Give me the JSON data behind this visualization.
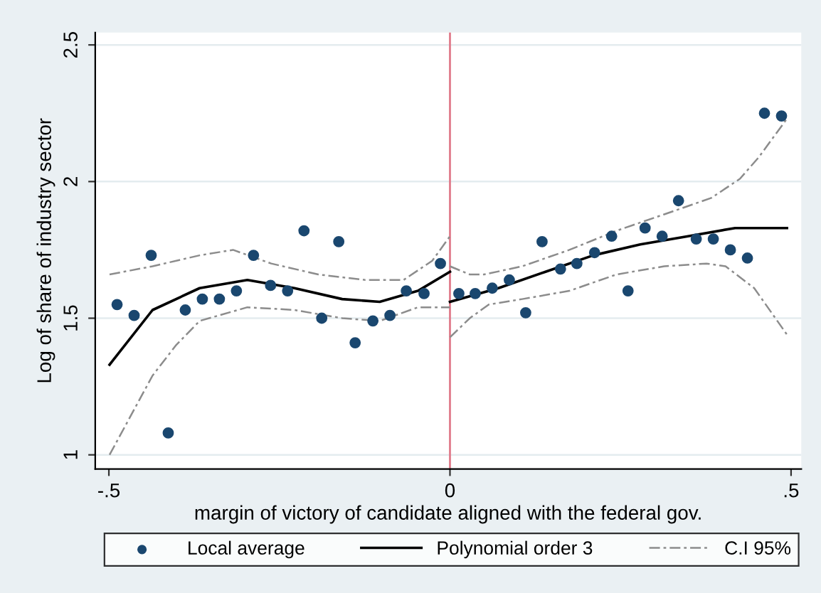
{
  "chart_data": {
    "type": "scatter",
    "xlabel": "margin of victory of candidate aligned with the federal gov.",
    "ylabel": "Log of share of industry sector",
    "xlim": [
      -0.52,
      0.515
    ],
    "ylim": [
      0.948,
      2.545
    ],
    "xticks": [
      {
        "value": -0.5,
        "label": "-.5"
      },
      0,
      {
        "value": 0.5,
        "label": ".5"
      }
    ],
    "yticks": [
      1,
      1.5,
      2,
      2.5
    ],
    "grid": "y",
    "legend": "bottom",
    "ref_lines": [
      {
        "axis": "x",
        "value": 0,
        "color": "#e07a8a"
      }
    ],
    "series": [
      {
        "name": "Local average",
        "marker": "circle",
        "color": "#1a476f",
        "x": [
          -0.488,
          -0.463,
          -0.438,
          -0.413,
          -0.388,
          -0.363,
          -0.338,
          -0.313,
          -0.288,
          -0.263,
          -0.238,
          -0.214,
          -0.188,
          -0.163,
          -0.139,
          -0.113,
          -0.088,
          -0.064,
          -0.038,
          -0.014,
          0.013,
          0.037,
          0.062,
          0.087,
          0.111,
          0.135,
          0.162,
          0.186,
          0.212,
          0.237,
          0.261,
          0.286,
          0.311,
          0.335,
          0.361,
          0.386,
          0.411,
          0.436,
          0.461,
          0.486
        ],
        "values": [
          1.55,
          1.51,
          1.73,
          1.08,
          1.53,
          1.57,
          1.57,
          1.6,
          1.73,
          1.62,
          1.6,
          1.82,
          1.5,
          1.78,
          1.41,
          1.49,
          1.51,
          1.6,
          1.59,
          1.7,
          1.59,
          1.59,
          1.61,
          1.64,
          1.52,
          1.78,
          1.68,
          1.7,
          1.74,
          1.8,
          1.6,
          1.83,
          1.8,
          1.93,
          1.79,
          1.79,
          1.75,
          1.72,
          2.25,
          2.24
        ]
      },
      {
        "name": "Polynomial order 3",
        "type": "line",
        "marker": "none",
        "line_style": "solid",
        "color": "#000000",
        "x": [
          -0.499,
          -0.436,
          -0.367,
          -0.297,
          -0.228,
          -0.158,
          -0.103,
          -0.047,
          0
        ],
        "values": [
          1.33,
          1.53,
          1.61,
          1.64,
          1.61,
          1.57,
          1.56,
          1.6,
          1.67
        ]
      },
      {
        "type": "line",
        "marker": "none",
        "line_style": "solid",
        "color": "#000000",
        "x": [
          0,
          0.071,
          0.14,
          0.21,
          0.279,
          0.349,
          0.418,
          0.494
        ],
        "values": [
          1.56,
          1.61,
          1.67,
          1.73,
          1.77,
          1.8,
          1.83,
          1.83
        ]
      },
      {
        "name": "C.I 95%",
        "type": "line",
        "marker": "none",
        "line_style": "dashed",
        "color": "#8c8c8c",
        "x": [
          -0.499,
          -0.436,
          -0.367,
          -0.318,
          -0.262,
          -0.193,
          -0.124,
          -0.068,
          -0.026,
          0
        ],
        "values": [
          1.66,
          1.69,
          1.73,
          1.75,
          1.7,
          1.66,
          1.64,
          1.64,
          1.71,
          1.8
        ]
      },
      {
        "type": "line",
        "marker": "none",
        "line_style": "dashed",
        "color": "#8c8c8c",
        "x": [
          0,
          0.029,
          0.05,
          0.106,
          0.175,
          0.244,
          0.314,
          0.383,
          0.425,
          0.453,
          0.494
        ],
        "values": [
          1.69,
          1.66,
          1.66,
          1.69,
          1.75,
          1.82,
          1.88,
          1.94,
          2.01,
          2.09,
          2.23
        ]
      },
      {
        "type": "line",
        "marker": "none",
        "line_style": "dashed",
        "color": "#8c8c8c",
        "x": [
          -0.499,
          -0.436,
          -0.402,
          -0.367,
          -0.297,
          -0.228,
          -0.158,
          -0.103,
          -0.047,
          0
        ],
        "values": [
          1.0,
          1.29,
          1.4,
          1.49,
          1.54,
          1.53,
          1.5,
          1.49,
          1.54,
          1.54
        ]
      },
      {
        "type": "line",
        "marker": "none",
        "line_style": "dashed",
        "color": "#8c8c8c",
        "x": [
          0,
          0.029,
          0.057,
          0.106,
          0.175,
          0.244,
          0.314,
          0.376,
          0.404,
          0.446,
          0.494
        ],
        "values": [
          1.43,
          1.5,
          1.55,
          1.57,
          1.6,
          1.66,
          1.69,
          1.7,
          1.69,
          1.61,
          1.44
        ]
      }
    ]
  }
}
